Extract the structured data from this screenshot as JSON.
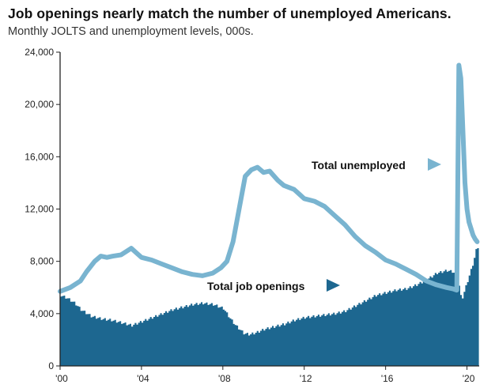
{
  "chart_data": {
    "type": "line",
    "title": "Job openings nearly match the number of unemployed Americans.",
    "subtitle": "Monthly JOLTS and unemployment levels, 000s.",
    "xlabel": "",
    "ylabel": "",
    "xlim": [
      2000.0,
      2020.6
    ],
    "ylim": [
      0,
      24000
    ],
    "grid": false,
    "y_ticks": [
      0,
      4000,
      8000,
      12000,
      16000,
      20000,
      24000
    ],
    "y_tick_labels": [
      "0",
      "4,000",
      "8,000",
      "12,000",
      "16,000",
      "20,000",
      "24,000"
    ],
    "x_ticks": [
      2000,
      2004,
      2008,
      2012,
      2016,
      2020
    ],
    "x_tick_labels": [
      "'00",
      "'04",
      "'08",
      "'12",
      "'16",
      "'20"
    ],
    "series": [
      {
        "name": "Total unemployed",
        "render": "line",
        "color": "#79b4d0",
        "x": [
          2000.0,
          2000.5,
          2001.0,
          2001.3,
          2001.7,
          2002.0,
          2002.3,
          2002.6,
          2003.0,
          2003.5,
          2004.0,
          2004.5,
          2005.0,
          2005.5,
          2006.0,
          2006.5,
          2007.0,
          2007.5,
          2007.9,
          2008.2,
          2008.5,
          2008.8,
          2009.1,
          2009.4,
          2009.7,
          2010.0,
          2010.3,
          2010.7,
          2011.0,
          2011.5,
          2012.0,
          2012.5,
          2013.0,
          2013.5,
          2014.0,
          2014.5,
          2015.0,
          2015.5,
          2016.0,
          2016.5,
          2017.0,
          2017.5,
          2018.0,
          2018.5,
          2019.0,
          2019.3,
          2019.5,
          2019.6,
          2019.7,
          2019.8,
          2019.9,
          2020.0,
          2020.1,
          2020.2,
          2020.3,
          2020.4,
          2020.5
        ],
        "values": [
          5700,
          6000,
          6500,
          7200,
          8000,
          8400,
          8300,
          8400,
          8500,
          9000,
          8300,
          8100,
          7800,
          7500,
          7200,
          7000,
          6900,
          7100,
          7500,
          8000,
          9500,
          12000,
          14500,
          15000,
          15200,
          14800,
          14900,
          14200,
          13800,
          13500,
          12800,
          12600,
          12200,
          11500,
          10800,
          9900,
          9200,
          8700,
          8100,
          7800,
          7400,
          7000,
          6500,
          6200,
          6000,
          5900,
          5800,
          23000,
          22000,
          18000,
          14000,
          12000,
          11000,
          10500,
          10000,
          9700,
          9500
        ]
      },
      {
        "name": "Total job openings",
        "render": "area",
        "color": "#1d6790",
        "x": [
          2000.0,
          2000.3,
          2000.7,
          2001.0,
          2001.5,
          2002.0,
          2002.5,
          2003.0,
          2003.5,
          2004.0,
          2004.5,
          2005.0,
          2005.5,
          2006.0,
          2006.5,
          2007.0,
          2007.5,
          2008.0,
          2008.3,
          2008.6,
          2009.0,
          2009.3,
          2009.7,
          2010.0,
          2010.5,
          2011.0,
          2011.5,
          2012.0,
          2012.5,
          2013.0,
          2013.5,
          2014.0,
          2014.5,
          2015.0,
          2015.5,
          2016.0,
          2016.5,
          2017.0,
          2017.5,
          2018.0,
          2018.5,
          2019.0,
          2019.3,
          2019.5,
          2019.6,
          2019.7,
          2019.8,
          2019.9,
          2020.0,
          2020.1,
          2020.2,
          2020.3,
          2020.4,
          2020.5
        ],
        "values": [
          5400,
          5200,
          4800,
          4300,
          3800,
          3600,
          3500,
          3300,
          3100,
          3400,
          3700,
          4000,
          4300,
          4500,
          4700,
          4800,
          4700,
          4400,
          3700,
          3100,
          2500,
          2400,
          2600,
          2800,
          3000,
          3200,
          3500,
          3700,
          3800,
          3900,
          4000,
          4200,
          4600,
          5000,
          5400,
          5600,
          5800,
          5900,
          6200,
          6600,
          7100,
          7300,
          7200,
          6800,
          6000,
          5000,
          5500,
          6000,
          6500,
          7000,
          7500,
          8000,
          8800,
          9100
        ]
      }
    ],
    "annotations": [
      {
        "text": "Total unemployed",
        "anchor": "upper-right",
        "arrow": "right"
      },
      {
        "text": "Total job openings",
        "anchor": "center",
        "arrow": "right"
      }
    ]
  }
}
